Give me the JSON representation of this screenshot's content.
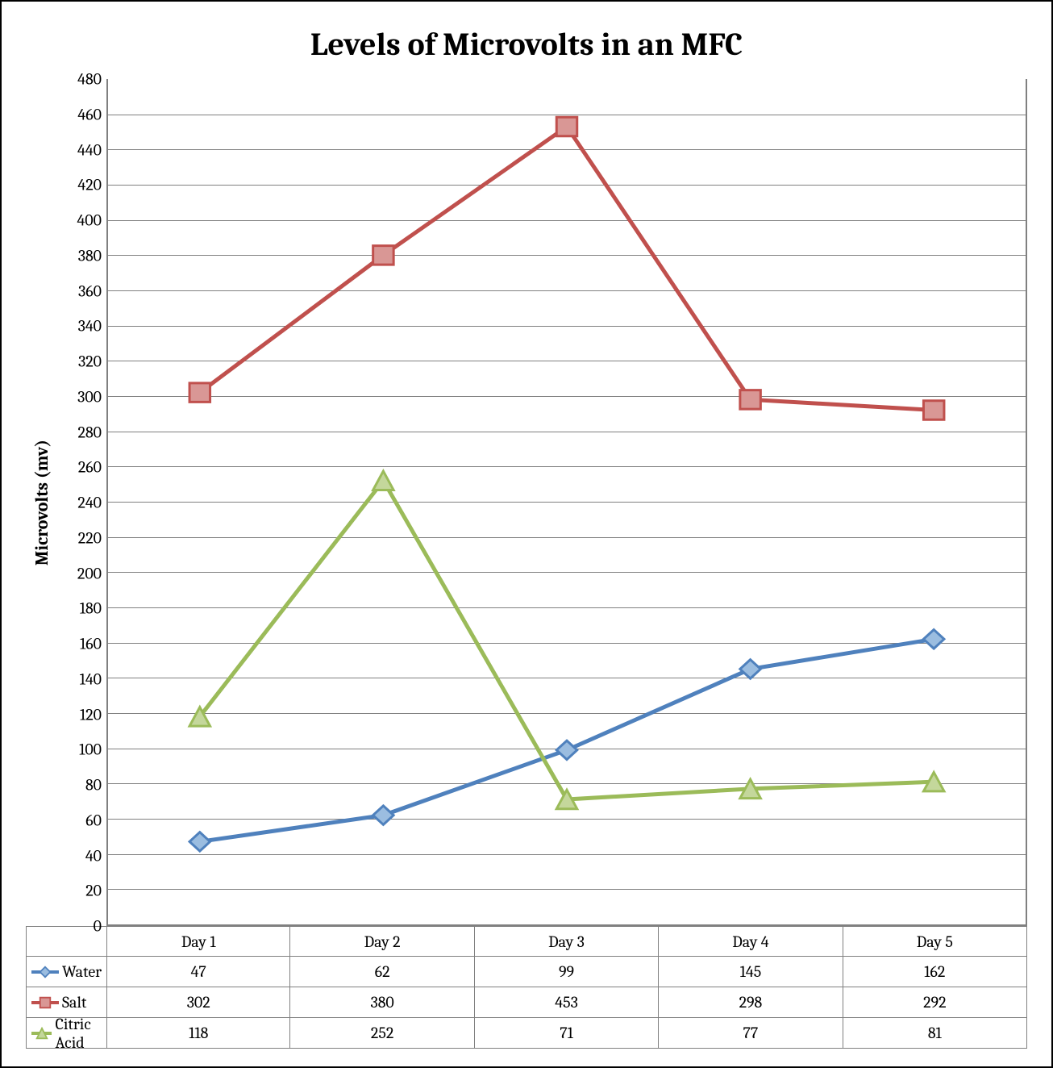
{
  "chart": {
    "type": "line",
    "title": "Levels of Microvolts in an MFC",
    "title_fontsize": 40,
    "ylabel": "Microvolts (mv)",
    "ylabel_fontsize": 22,
    "background_color": "#ffffff",
    "border_color": "#000000",
    "grid_color": "#808080",
    "axis_color": "#808080",
    "tick_fontsize": 20,
    "table_fontsize": 20,
    "line_width": 5,
    "marker_size": 14,
    "ylim": [
      0,
      480
    ],
    "ytick_step": 20,
    "categories": [
      "Day 1",
      "Day 2",
      "Day 3",
      "Day 4",
      "Day 5"
    ],
    "series": [
      {
        "id": "water",
        "name": "Water",
        "values": [
          47,
          62,
          99,
          145,
          162
        ],
        "line_color": "#4f81bd",
        "marker_shape": "diamond",
        "marker_fill": "#9bbde0",
        "marker_stroke": "#4f81bd"
      },
      {
        "id": "salt",
        "name": "Salt",
        "values": [
          302,
          380,
          453,
          298,
          292
        ],
        "line_color": "#c0504d",
        "marker_shape": "square",
        "marker_fill": "#d99795",
        "marker_stroke": "#c0504d"
      },
      {
        "id": "citric",
        "name": "Citric Acid",
        "values": [
          118,
          252,
          71,
          77,
          81
        ],
        "line_color": "#9bbb59",
        "marker_shape": "triangle",
        "marker_fill": "#c4d79b",
        "marker_stroke": "#9bbb59"
      }
    ]
  }
}
